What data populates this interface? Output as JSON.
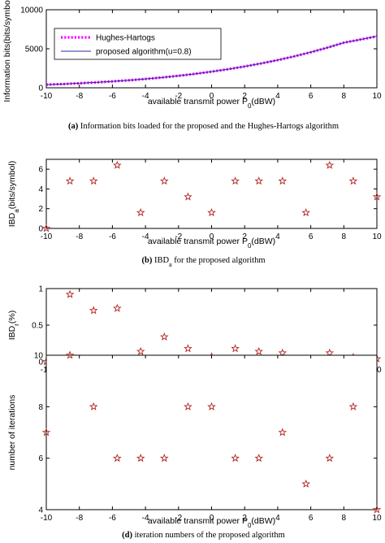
{
  "colors": {
    "hughes": "#ff00ff",
    "proposed": "#2a2aa8",
    "star": "#b22222",
    "axis": "#000000"
  },
  "chart_data": [
    {
      "type": "line",
      "xlabel": "available transmit power P",
      "xlabel_sub": "0",
      "xlabel_unit": "(dBW)",
      "ylabel": "Information bits(bits/symbol)",
      "caption_tag": "(a)",
      "caption": "Information bits loaded for the proposed  and the Hughes-Hartogs algorithm",
      "xlim": [
        -10,
        10
      ],
      "ylim": [
        0,
        10000
      ],
      "xticks": [
        "-10",
        "-8",
        "-6",
        "-4",
        "-2",
        "0",
        "2",
        "4",
        "6",
        "8",
        "10"
      ],
      "yticks": [
        "0",
        "5000",
        "10000"
      ],
      "legend_position": "top-left",
      "x": [
        -10,
        -9,
        -8,
        -7,
        -6,
        -5,
        -4,
        -3,
        -2,
        -1,
        0,
        1,
        2,
        3,
        4,
        5,
        6,
        7,
        8,
        9,
        10
      ],
      "series": [
        {
          "name": "Hughes-Hartogs",
          "style": "dotted",
          "values": [
            400,
            480,
            580,
            690,
            820,
            960,
            1130,
            1320,
            1540,
            1790,
            2070,
            2380,
            2730,
            3120,
            3550,
            4030,
            4560,
            5140,
            5780,
            6180,
            6600
          ]
        },
        {
          "name": "proposed algorithm(u=0.8)",
          "style": "solid",
          "values": [
            400,
            480,
            580,
            690,
            820,
            960,
            1130,
            1320,
            1540,
            1790,
            2070,
            2380,
            2730,
            3120,
            3550,
            4030,
            4560,
            5140,
            5780,
            6180,
            6600
          ]
        }
      ]
    },
    {
      "type": "scatter",
      "xlabel": "available transmit power P",
      "xlabel_sub": "0",
      "xlabel_unit": "(dBW)",
      "ylabel": "IBD",
      "ylabel_sub": "a",
      "ylabel_unit": "(bits/symbol)",
      "caption_tag": "(b)",
      "caption_main": "IBD",
      "caption_sub": "a",
      "caption_rest": " for the proposed algorithm",
      "xlim": [
        -10,
        10
      ],
      "ylim": [
        0,
        7
      ],
      "xticks": [
        "-10",
        "-8",
        "-6",
        "-4",
        "-2",
        "0",
        "2",
        "4",
        "6",
        "8",
        "10"
      ],
      "yticks": [
        "0",
        "2",
        "4",
        "6"
      ],
      "x": [
        -10,
        -8.57,
        -7.14,
        -5.71,
        -4.29,
        -2.86,
        -1.43,
        0,
        1.43,
        2.86,
        4.29,
        5.71,
        7.14,
        8.57,
        10
      ],
      "y": [
        0,
        4.8,
        4.8,
        6.4,
        1.6,
        4.8,
        3.2,
        1.6,
        4.8,
        4.8,
        4.8,
        1.6,
        6.4,
        4.8,
        3.2
      ]
    },
    {
      "type": "scatter",
      "xlabel": "available transmit power P",
      "xlabel_sub": "0",
      "xlabel_unit": "(dBW)",
      "ylabel": "IBD",
      "ylabel_sub": "r",
      "ylabel_unit": "(%)",
      "caption_tag": "(c)",
      "caption_main": "IBD",
      "caption_sub": "r",
      "caption_rest": " for the proposed algorithm",
      "xlim": [
        -10,
        10
      ],
      "ylim": [
        0,
        1
      ],
      "xticks": [
        "-10",
        "-8",
        "-6",
        "-4",
        "-2",
        "0",
        "2",
        "4",
        "6",
        "8",
        "10"
      ],
      "yticks": [
        "0",
        "0.5",
        "1"
      ],
      "x": [
        -10,
        -8.57,
        -7.14,
        -5.71,
        -4.29,
        -2.86,
        -1.43,
        0,
        1.43,
        2.86,
        4.29,
        5.71,
        7.14,
        8.57,
        10
      ],
      "y": [
        0,
        0.92,
        0.7,
        0.73,
        0.14,
        0.34,
        0.18,
        0.07,
        0.18,
        0.14,
        0.12,
        0.03,
        0.12,
        0.06,
        0.04
      ]
    },
    {
      "type": "scatter",
      "xlabel": "available transmit power P",
      "xlabel_sub": "0",
      "xlabel_unit": "(dBW)",
      "ylabel": "number of iterations",
      "caption_tag": "(d)",
      "caption": "iteration numbers of the proposed algorithm",
      "xlim": [
        -10,
        10
      ],
      "ylim": [
        4,
        10
      ],
      "xticks": [
        "-10",
        "-8",
        "-6",
        "-4",
        "-2",
        "0",
        "2",
        "4",
        "6",
        "8",
        "10"
      ],
      "yticks": [
        "4",
        "6",
        "8",
        "10"
      ],
      "x": [
        -10,
        -8.57,
        -7.14,
        -5.71,
        -4.29,
        -2.86,
        -1.43,
        0,
        1.43,
        2.86,
        4.29,
        5.71,
        7.14,
        8.57,
        10
      ],
      "y": [
        7,
        10,
        8,
        6,
        6,
        6,
        8,
        8,
        6,
        6,
        7,
        5,
        6,
        8,
        4
      ]
    }
  ]
}
